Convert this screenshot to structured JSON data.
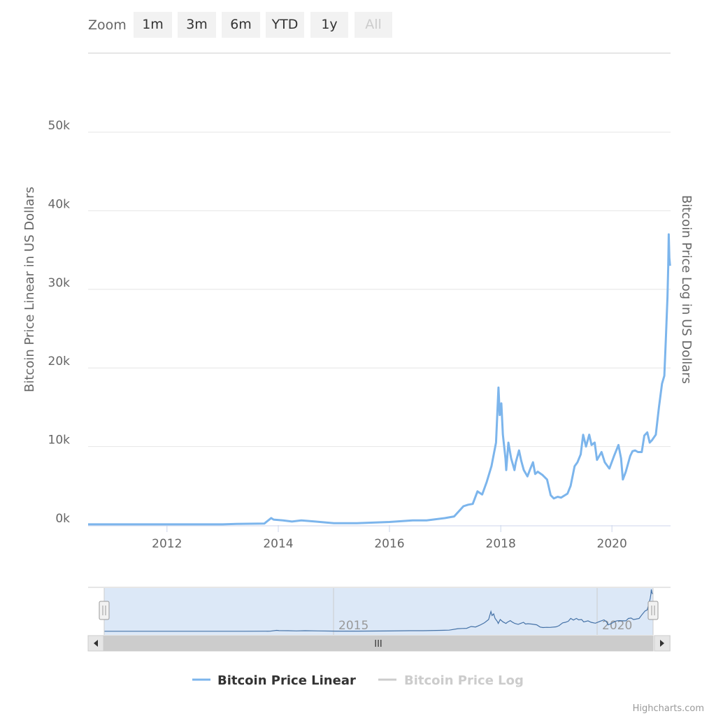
{
  "range_selector": {
    "zoom_label": "Zoom",
    "buttons": [
      {
        "label": "1m",
        "enabled": true
      },
      {
        "label": "3m",
        "enabled": true
      },
      {
        "label": "6m",
        "enabled": true
      },
      {
        "label": "YTD",
        "enabled": true
      },
      {
        "label": "1y",
        "enabled": true
      },
      {
        "label": "All",
        "enabled": false
      }
    ]
  },
  "credits": "Highcharts.com",
  "colors": {
    "series_linear": "#7cb5ec",
    "series_log_hidden": "#cccccc",
    "grid": "#e6e6e6",
    "navigator_mask": "#dce8f7",
    "navigator_line": "#4572a7"
  },
  "chart_data": {
    "type": "line",
    "ylabel": "Bitcoin Price Linear in US Dollars",
    "ylabel_right": "Bitcoin Price Log in US Dollars",
    "xlim": [
      "2010-08",
      "2021-01"
    ],
    "ylim": [
      0,
      50000
    ],
    "y_ticks": [
      "0k",
      "10k",
      "20k",
      "30k",
      "40k",
      "50k"
    ],
    "x_ticks": [
      "2012",
      "2014",
      "2016",
      "2018",
      "2020"
    ],
    "grid": true,
    "legend_position": "bottom-center",
    "navigator_ticks": [
      "2015",
      "2020"
    ],
    "navigator_scrollbar_label": "III",
    "series": [
      {
        "name": "Bitcoin Price Linear",
        "visible": true,
        "x": [
          "2010-08",
          "2011-06",
          "2012-06",
          "2013-01",
          "2013-04",
          "2013-10",
          "2013-11-15",
          "2013-12",
          "2014-02",
          "2014-04",
          "2014-06",
          "2014-09",
          "2015-01",
          "2015-06",
          "2016-01",
          "2016-06",
          "2016-09",
          "2017-01",
          "2017-03",
          "2017-05",
          "2017-06",
          "2017-07",
          "2017-08",
          "2017-09",
          "2017-10",
          "2017-11",
          "2017-12-01",
          "2017-12-17",
          "2017-12-25",
          "2018-01-05",
          "2018-01-15",
          "2018-02-01",
          "2018-02-06",
          "2018-02-20",
          "2018-03-10",
          "2018-04-01",
          "2018-04-10",
          "2018-05-01",
          "2018-05-15",
          "2018-06-01",
          "2018-06-25",
          "2018-07-15",
          "2018-08-01",
          "2018-08-15",
          "2018-09-01",
          "2018-10-01",
          "2018-11-01",
          "2018-11-25",
          "2018-12-15",
          "2019-01-10",
          "2019-02-01",
          "2019-03-15",
          "2019-04-05",
          "2019-05-01",
          "2019-05-20",
          "2019-06-10",
          "2019-06-26",
          "2019-07-15",
          "2019-08-05",
          "2019-08-20",
          "2019-09-10",
          "2019-09-25",
          "2019-10-25",
          "2019-11-15",
          "2019-12-15",
          "2020-01-15",
          "2020-02-13",
          "2020-03-01",
          "2020-03-13",
          "2020-04-01",
          "2020-04-30",
          "2020-05-15",
          "2020-06-01",
          "2020-06-20",
          "2020-07-15",
          "2020-08-01",
          "2020-08-20",
          "2020-09-05",
          "2020-09-20",
          "2020-10-15",
          "2020-11-05",
          "2020-11-25",
          "2020-12-10",
          "2020-12-20",
          "2020-12-31",
          "2021-01-05",
          "2021-01-08",
          "2021-01-12",
          "2021-01-17"
        ],
        "values": [
          100,
          100,
          100,
          100,
          150,
          200,
          900,
          700,
          600,
          450,
          600,
          450,
          250,
          250,
          400,
          600,
          600,
          900,
          1100,
          2400,
          2600,
          2700,
          4300,
          3900,
          5500,
          7500,
          10500,
          17500,
          14000,
          15500,
          11500,
          8500,
          7000,
          10500,
          8500,
          7000,
          8000,
          9500,
          8200,
          7000,
          6200,
          7200,
          8000,
          6500,
          6800,
          6400,
          5800,
          3800,
          3400,
          3600,
          3500,
          4000,
          5000,
          7500,
          8000,
          9000,
          11500,
          10000,
          11500,
          10200,
          10500,
          8300,
          9300,
          8000,
          7200,
          8800,
          10200,
          8500,
          5800,
          6800,
          8800,
          9400,
          9500,
          9300,
          9300,
          11400,
          11800,
          10500,
          10800,
          11500,
          15000,
          18000,
          19000,
          23500,
          29000,
          33000,
          37000,
          34000,
          33000
        ]
      },
      {
        "name": "Bitcoin Price Log",
        "visible": false,
        "x": [],
        "values": []
      }
    ]
  }
}
